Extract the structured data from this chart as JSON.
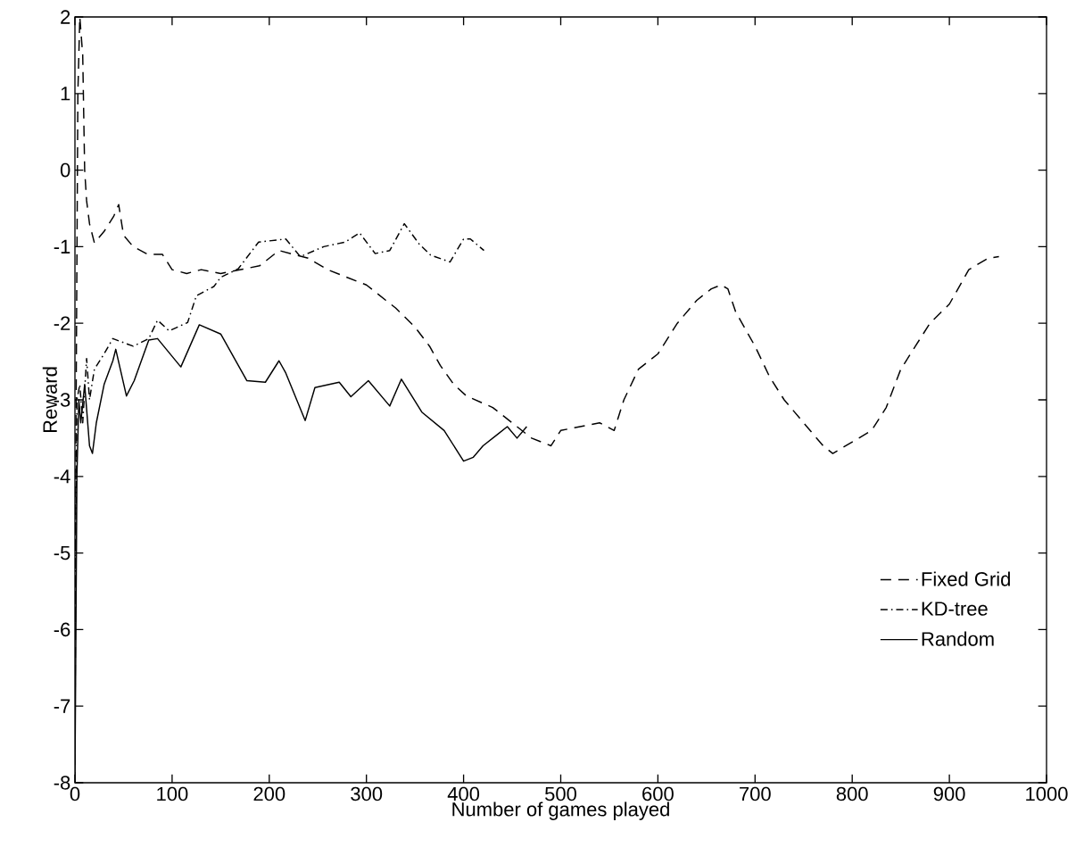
{
  "chart_data": {
    "type": "line",
    "xlabel": "Number of games played",
    "ylabel": "Reward",
    "xlim": [
      0,
      1000
    ],
    "ylim": [
      -8,
      2
    ],
    "xticks": [
      0,
      100,
      200,
      300,
      400,
      500,
      600,
      700,
      800,
      900,
      1000
    ],
    "yticks": [
      -8,
      -7,
      -6,
      -5,
      -4,
      -3,
      -2,
      -1,
      0,
      1,
      2
    ],
    "grid": false,
    "legend": "bottom right",
    "marker": "none",
    "series": [
      {
        "name": "Fixed Grid",
        "color": "#000000",
        "line_style": "dashed",
        "x": [
          0,
          1,
          3,
          5,
          8,
          10,
          12,
          15,
          20,
          30,
          40,
          45,
          50,
          60,
          75,
          90,
          100,
          115,
          130,
          150,
          170,
          190,
          210,
          225,
          240,
          260,
          280,
          300,
          320,
          330,
          350,
          365,
          376,
          390,
          403,
          430,
          450,
          470,
          490,
          500,
          520,
          540,
          555,
          565,
          580,
          600,
          620,
          640,
          655,
          665,
          672,
          680,
          700,
          715,
          730,
          750,
          770,
          780,
          800,
          820,
          835,
          850,
          865,
          880,
          900,
          920,
          940,
          951
        ],
        "values": [
          -8,
          -3.5,
          1,
          2,
          1.5,
          0,
          -0.4,
          -0.7,
          -0.95,
          -0.8,
          -0.6,
          -0.45,
          -0.85,
          -1.0,
          -1.1,
          -1.1,
          -1.3,
          -1.35,
          -1.3,
          -1.35,
          -1.3,
          -1.25,
          -1.05,
          -1.1,
          -1.15,
          -1.3,
          -1.4,
          -1.5,
          -1.7,
          -1.8,
          -2.05,
          -2.3,
          -2.55,
          -2.8,
          -2.95,
          -3.1,
          -3.3,
          -3.5,
          -3.6,
          -3.4,
          -3.35,
          -3.3,
          -3.4,
          -3.0,
          -2.6,
          -2.4,
          -2.0,
          -1.7,
          -1.55,
          -1.5,
          -1.55,
          -1.85,
          -2.3,
          -2.7,
          -3.0,
          -3.3,
          -3.6,
          -3.7,
          -3.55,
          -3.4,
          -3.1,
          -2.6,
          -2.3,
          -2.0,
          -1.75,
          -1.3,
          -1.15,
          -1.13
        ]
      },
      {
        "name": "KD-tree",
        "color": "#000000",
        "line_style": "dashdot",
        "x": [
          0,
          2,
          5,
          8,
          12,
          15,
          20,
          30,
          39,
          60,
          76,
          85,
          97,
          116,
          125,
          143,
          150,
          168,
          189,
          217,
          232,
          256,
          278,
          293,
          309,
          324,
          339,
          354,
          366,
          386,
          400,
          407,
          421
        ],
        "values": [
          -6,
          -3,
          -2.8,
          -3.3,
          -2.46,
          -3.0,
          -2.6,
          -2.4,
          -2.2,
          -2.3,
          -2.2,
          -1.96,
          -2.1,
          -1.99,
          -1.64,
          -1.52,
          -1.4,
          -1.29,
          -0.94,
          -0.9,
          -1.13,
          -1.0,
          -0.94,
          -0.82,
          -1.09,
          -1.05,
          -0.7,
          -0.96,
          -1.11,
          -1.2,
          -0.9,
          -0.9,
          -1.05
        ]
      },
      {
        "name": "Random",
        "color": "#000000",
        "line_style": "solid",
        "x": [
          0,
          2,
          4,
          6,
          10,
          15,
          18,
          22,
          30,
          39,
          42,
          53,
          61,
          76,
          85,
          109,
          128,
          150,
          177,
          196,
          210,
          217,
          237,
          247,
          272,
          284,
          302,
          324,
          336,
          357,
          380,
          400,
          410,
          420,
          435,
          445,
          455,
          465
        ],
        "values": [
          -8,
          -4,
          -3.0,
          -3.3,
          -2.8,
          -3.6,
          -3.7,
          -3.3,
          -2.8,
          -2.49,
          -2.34,
          -2.95,
          -2.75,
          -2.22,
          -2.2,
          -2.57,
          -2.02,
          -2.14,
          -2.75,
          -2.77,
          -2.49,
          -2.65,
          -3.27,
          -2.84,
          -2.77,
          -2.96,
          -2.75,
          -3.08,
          -2.73,
          -3.16,
          -3.4,
          -3.8,
          -3.75,
          -3.6,
          -3.45,
          -3.35,
          -3.5,
          -3.35
        ]
      }
    ]
  }
}
